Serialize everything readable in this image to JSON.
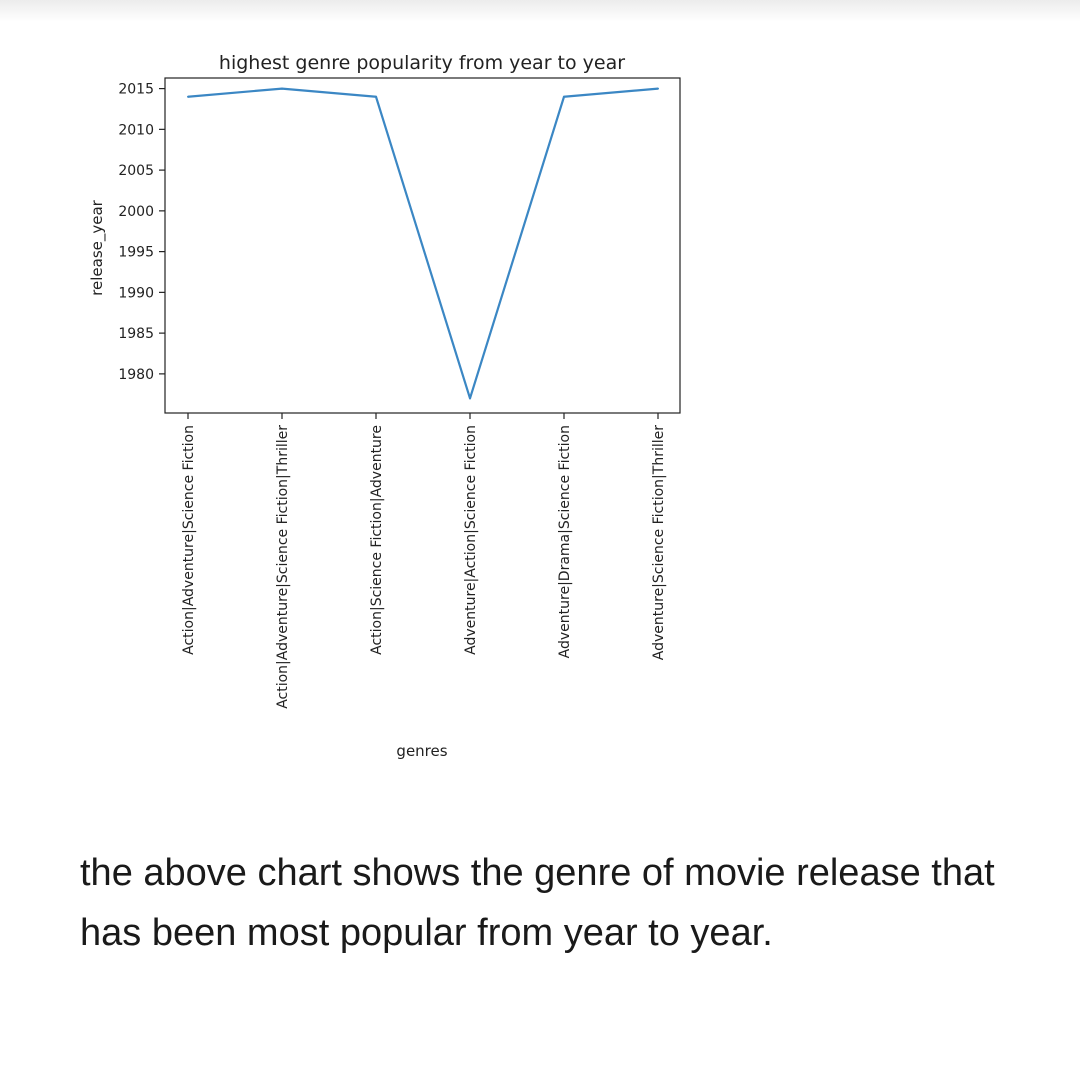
{
  "chart_data": {
    "type": "line",
    "title": "highest genre popularity from year to year",
    "xlabel": "genres",
    "ylabel": "release_year",
    "categories": [
      "Action|Adventure|Science Fiction",
      "Action|Adventure|Science Fiction|Thriller",
      "Action|Science Fiction|Adventure",
      "Adventure|Action|Science Fiction",
      "Adventure|Drama|Science Fiction",
      "Adventure|Science Fiction|Thriller"
    ],
    "values": [
      2014,
      2015,
      2014,
      1977,
      2014,
      2015
    ],
    "y_ticks": [
      1980,
      1985,
      1990,
      1995,
      2000,
      2005,
      2010,
      2015
    ],
    "ylim": [
      1975.2,
      2016.3
    ],
    "grid": false,
    "line_color": "#3b87c4"
  },
  "caption": "the above chart shows the genre of movie release that has been most popular from year to year."
}
